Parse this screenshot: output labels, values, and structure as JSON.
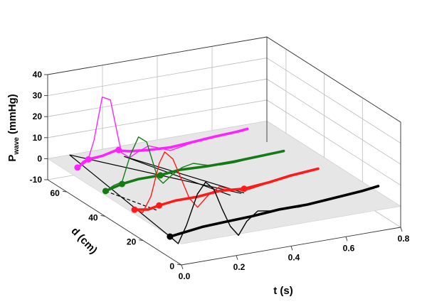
{
  "chart_data": {
    "type": "line",
    "projection": "3d-waterfall",
    "title": "",
    "xlabel": "t (s)",
    "ylabel": "d (cm)",
    "zlabel_main": "P",
    "zlabel_sub": "wave",
    "zlabel_unit": "(mmHg)",
    "xlim": [
      0,
      0.8
    ],
    "ylim": [
      0,
      70
    ],
    "zlim": [
      -10,
      40
    ],
    "x_ticks": [
      "0.0",
      "0.2",
      "0.4",
      "0.6",
      "0.8"
    ],
    "y_ticks": [
      "0",
      "20",
      "40",
      "60"
    ],
    "z_ticks": [
      "-10",
      "0",
      "10",
      "20",
      "30",
      "40"
    ],
    "grid": true,
    "colors": {
      "magenta": "#ff22ff",
      "green": "#157a15",
      "red": "#ff1a1a",
      "black": "#000000",
      "floor": "#e6e6e6",
      "grid": "#bbbbbb"
    },
    "series": [
      {
        "color": "magenta",
        "d": 63,
        "marker_x": [
          0.06,
          0.1,
          0.21
        ],
        "points": [
          [
            0.06,
            -1.5
          ],
          [
            0.08,
            1
          ],
          [
            0.1,
            2
          ],
          [
            0.12,
            10
          ],
          [
            0.15,
            30
          ],
          [
            0.18,
            28
          ],
          [
            0.2,
            15
          ],
          [
            0.22,
            2
          ],
          [
            0.25,
            -1
          ],
          [
            0.28,
            1
          ],
          [
            0.32,
            3
          ],
          [
            0.36,
            1
          ],
          [
            0.4,
            -1
          ],
          [
            0.44,
            0
          ],
          [
            0.48,
            1
          ],
          [
            0.52,
            2
          ],
          [
            0.56,
            2
          ],
          [
            0.6,
            2
          ],
          [
            0.64,
            2.5
          ],
          [
            0.68,
            3
          ]
        ],
        "band_points": [
          [
            0.06,
            -1.5
          ],
          [
            0.1,
            1.5
          ],
          [
            0.15,
            2
          ],
          [
            0.2,
            3.5
          ],
          [
            0.25,
            2
          ],
          [
            0.32,
            1
          ],
          [
            0.4,
            0.5
          ],
          [
            0.48,
            1.2
          ],
          [
            0.56,
            2
          ],
          [
            0.64,
            2.5
          ],
          [
            0.68,
            3
          ]
        ]
      },
      {
        "color": "green",
        "d": 44,
        "marker_x": [
          0.03,
          0.09,
          0.23
        ],
        "points": [
          [
            0.03,
            -1
          ],
          [
            0.06,
            1
          ],
          [
            0.09,
            2
          ],
          [
            0.12,
            14
          ],
          [
            0.15,
            22
          ],
          [
            0.18,
            19
          ],
          [
            0.2,
            10
          ],
          [
            0.22,
            1
          ],
          [
            0.24,
            -2
          ],
          [
            0.27,
            1
          ],
          [
            0.31,
            4
          ],
          [
            0.35,
            5
          ],
          [
            0.4,
            3
          ],
          [
            0.45,
            2
          ],
          [
            0.5,
            2
          ],
          [
            0.55,
            2.5
          ],
          [
            0.6,
            3
          ],
          [
            0.68,
            3.5
          ]
        ],
        "band_points": [
          [
            0.03,
            -1
          ],
          [
            0.09,
            1
          ],
          [
            0.15,
            2
          ],
          [
            0.22,
            2
          ],
          [
            0.3,
            3
          ],
          [
            0.4,
            2.5
          ],
          [
            0.5,
            2.5
          ],
          [
            0.6,
            3
          ],
          [
            0.68,
            3.5
          ]
        ]
      },
      {
        "color": "red",
        "d": 26,
        "marker_x": [
          0.01,
          0.1,
          0.41
        ],
        "points": [
          [
            0.01,
            1
          ],
          [
            0.04,
            -1
          ],
          [
            0.07,
            6
          ],
          [
            0.1,
            21
          ],
          [
            0.12,
            26
          ],
          [
            0.15,
            22
          ],
          [
            0.18,
            12
          ],
          [
            0.21,
            2
          ],
          [
            0.24,
            -3
          ],
          [
            0.28,
            2
          ],
          [
            0.32,
            5
          ],
          [
            0.36,
            3
          ],
          [
            0.41,
            1
          ],
          [
            0.46,
            2
          ],
          [
            0.51,
            3
          ],
          [
            0.56,
            4
          ],
          [
            0.62,
            4.5
          ],
          [
            0.68,
            5.5
          ]
        ],
        "band_points": [
          [
            0.01,
            1
          ],
          [
            0.06,
            0
          ],
          [
            0.1,
            1
          ],
          [
            0.16,
            2
          ],
          [
            0.24,
            2
          ],
          [
            0.32,
            3
          ],
          [
            0.41,
            2
          ],
          [
            0.5,
            3
          ],
          [
            0.58,
            4.5
          ],
          [
            0.68,
            5.5
          ]
        ]
      },
      {
        "color": "black",
        "d": 6,
        "marker_x": [
          0.0
        ],
        "points": [
          [
            0,
            0
          ],
          [
            0.03,
            -4
          ],
          [
            0.06,
            4
          ],
          [
            0.1,
            18
          ],
          [
            0.13,
            23
          ],
          [
            0.16,
            19
          ],
          [
            0.19,
            9
          ],
          [
            0.22,
            0
          ],
          [
            0.25,
            -5
          ],
          [
            0.28,
            1
          ],
          [
            0.32,
            5
          ],
          [
            0.37,
            4
          ],
          [
            0.42,
            4
          ],
          [
            0.47,
            3.5
          ],
          [
            0.52,
            4
          ],
          [
            0.57,
            5
          ],
          [
            0.62,
            5.5
          ],
          [
            0.67,
            6
          ],
          [
            0.72,
            6.5
          ],
          [
            0.76,
            7
          ]
        ],
        "band_points": [
          [
            0,
            0
          ],
          [
            0.06,
            1
          ],
          [
            0.12,
            2
          ],
          [
            0.2,
            2.5
          ],
          [
            0.3,
            3
          ],
          [
            0.4,
            4
          ],
          [
            0.5,
            4
          ],
          [
            0.6,
            5
          ],
          [
            0.7,
            6
          ],
          [
            0.76,
            7
          ]
        ]
      }
    ],
    "black_straight_lines": [
      [
        [
          0.08,
          70,
          0
        ],
        [
          0.4,
          26,
          0
        ]
      ],
      [
        [
          0.08,
          70,
          0
        ],
        [
          0.0,
          6,
          0
        ]
      ],
      [
        [
          0.23,
          63,
          0
        ],
        [
          0.41,
          26,
          0
        ]
      ],
      [
        [
          0.23,
          63,
          0
        ],
        [
          0.36,
          26,
          0
        ]
      ]
    ],
    "dashed_line": [
      [
        0.03,
        44,
        -1
      ],
      [
        0.09,
        26,
        -1
      ]
    ]
  }
}
